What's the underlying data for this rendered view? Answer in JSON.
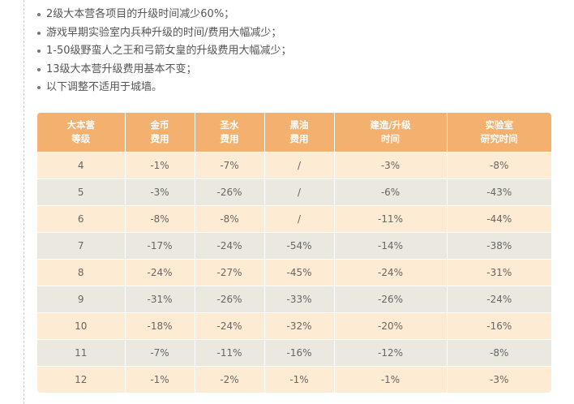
{
  "notes": [
    "2级大本营各项目的升级时间减少60%；",
    "游戏早期实验室内兵种升级的时间/费用大幅减少；",
    "1-50级野蛮人之王和弓箭女皇的升级费用大幅减少；",
    "13级大本营升级费用基本不变；",
    "以下调整不适用于城墙。"
  ],
  "table": {
    "headers": [
      [
        "大本营",
        "等级"
      ],
      [
        "金币",
        "费用"
      ],
      [
        "圣水",
        "费用"
      ],
      [
        "黑油",
        "费用"
      ],
      [
        "建造/升级",
        "时间"
      ],
      [
        "实验室",
        "研究时间"
      ]
    ],
    "rows": [
      [
        "4",
        "-1%",
        "-7%",
        "/",
        "-3%",
        "-8%"
      ],
      [
        "5",
        "-3%",
        "-26%",
        "/",
        "-6%",
        "-43%"
      ],
      [
        "6",
        "-8%",
        "-8%",
        "/",
        "-11%",
        "-44%"
      ],
      [
        "7",
        "-17%",
        "-24%",
        "-54%",
        "-14%",
        "-38%"
      ],
      [
        "8",
        "-24%",
        "-27%",
        "-45%",
        "-24%",
        "-31%"
      ],
      [
        "9",
        "-31%",
        "-26%",
        "-33%",
        "-26%",
        "-24%"
      ],
      [
        "10",
        "-18%",
        "-24%",
        "-32%",
        "-20%",
        "-16%"
      ],
      [
        "11",
        "-7%",
        "-11%",
        "-16%",
        "-12%",
        "-8%"
      ],
      [
        "12",
        "-1%",
        "-2%",
        "-1%",
        "-1%",
        "-3%"
      ]
    ]
  },
  "colors": {
    "header_bg": "#f4b06f",
    "row_odd": "#fdebd3",
    "row_even": "#ebe8df",
    "text": "#555555"
  }
}
